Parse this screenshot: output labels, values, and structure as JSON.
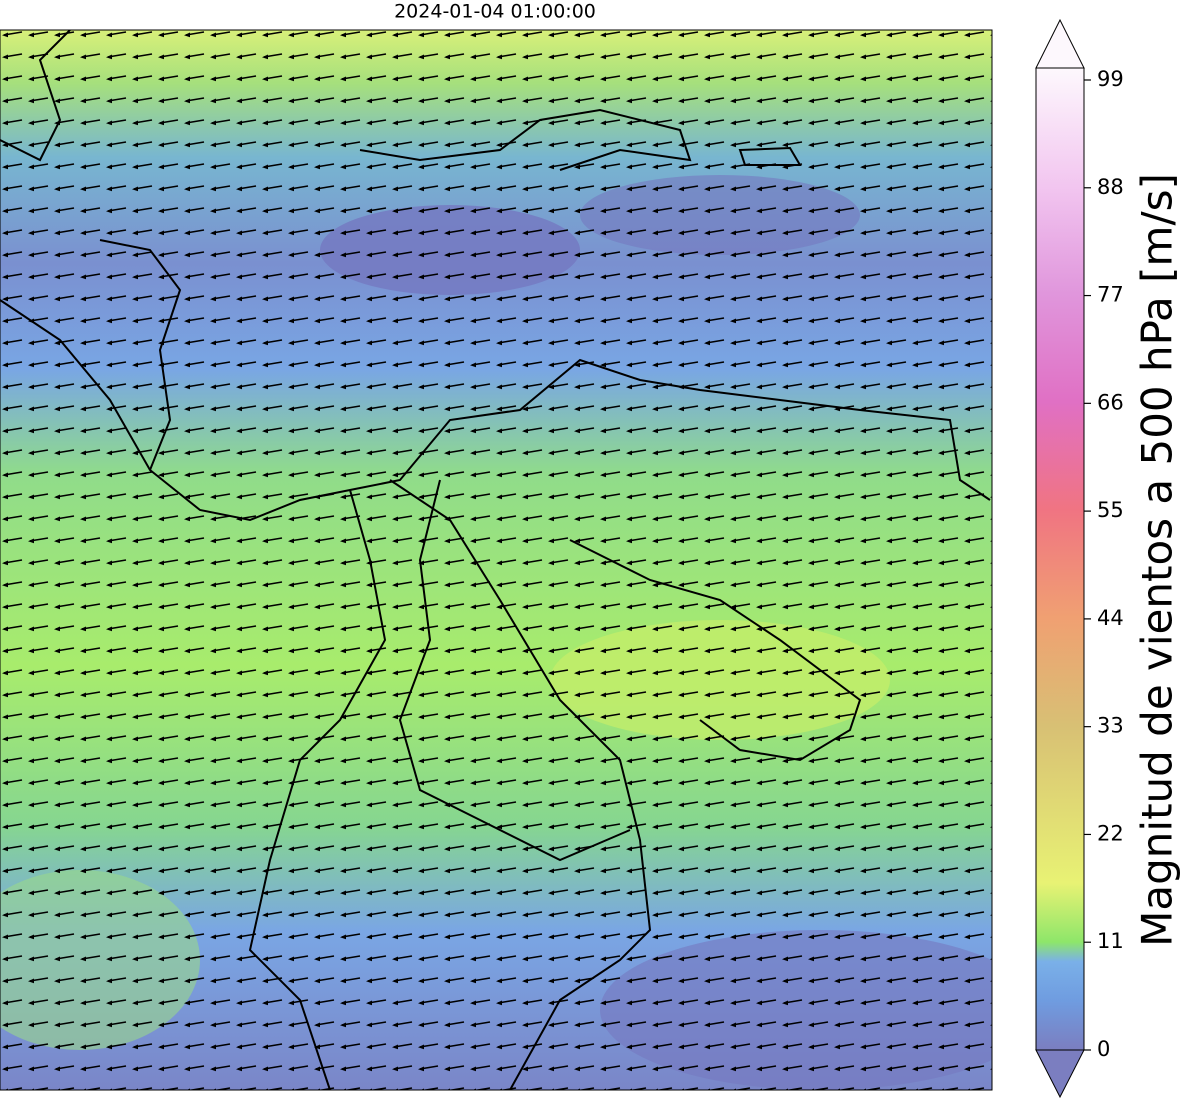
{
  "title": "2024-01-04 01:00:00",
  "colorbar": {
    "label": "Magnitud de vientos a 500 hPa [m/s]",
    "lim": [
      0,
      99
    ],
    "ticks": [
      0,
      11,
      22,
      33,
      44,
      55,
      66,
      77,
      88,
      99
    ]
  }
}
